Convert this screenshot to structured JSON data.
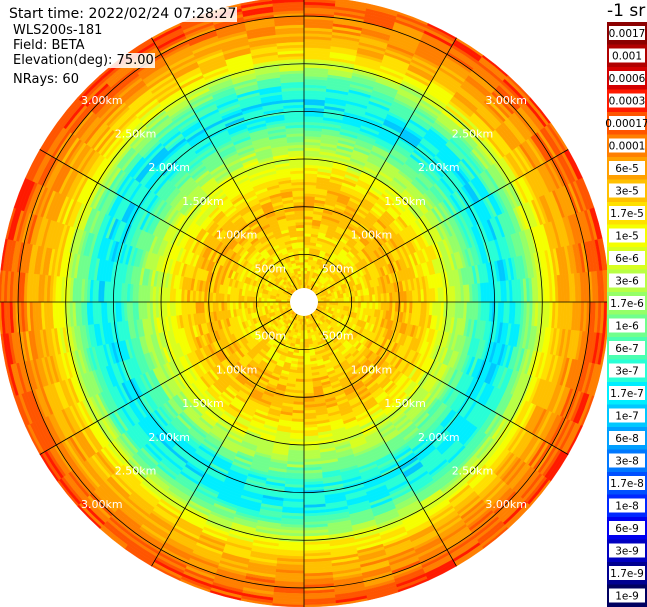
{
  "header": {
    "start_time": "Start time: 2022/02/24 07:28:27",
    "instrument": "WLS200s-181",
    "field": "Field: BETA",
    "elevation": "Elevation(deg): 75.00",
    "nrays": "NRays: 60"
  },
  "colorbar": {
    "title": "-1 sr",
    "ticks": [
      "0.0017",
      "0.001",
      "0.0006",
      "0.0003",
      "0.00017",
      "0.0001",
      "6e-5",
      "3e-5",
      "1.7e-5",
      "1e-5",
      "6e-6",
      "3e-6",
      "1.7e-6",
      "1e-6",
      "6e-7",
      "3e-7",
      "1.7e-7",
      "1e-7",
      "6e-8",
      "3e-8",
      "1.7e-8",
      "1e-8",
      "6e-9",
      "3e-9",
      "1.7e-9",
      "1e-9"
    ],
    "colors": [
      "#8b0000",
      "#b00000",
      "#d40000",
      "#ff1a00",
      "#ff5500",
      "#ff7f00",
      "#ffa000",
      "#ffc000",
      "#ffe000",
      "#f5ff00",
      "#d8ff20",
      "#b8ff45",
      "#95ff68",
      "#70ff8d",
      "#4cffb0",
      "#28ffd6",
      "#00eeff",
      "#00c8ff",
      "#00a0ff",
      "#0078ff",
      "#0050ff",
      "#0028ff",
      "#0000ee",
      "#0000c0",
      "#000090",
      "#000060"
    ]
  },
  "chart_data": {
    "type": "polar-heatmap",
    "title": "",
    "field": "BETA",
    "units": "-1 sr",
    "elevation_deg": 75.0,
    "n_rays": 60,
    "range_rings_km": [
      0.5,
      1.0,
      1.5,
      2.0,
      2.5,
      3.0
    ],
    "ring_labels": [
      "500m",
      "1.00km",
      "1.50km",
      "2.00km",
      "2.50km",
      "3.00km"
    ],
    "max_range_km": 3.2,
    "radial_profile": [
      {
        "range_km": 0.1,
        "level": 18
      },
      {
        "range_km": 0.3,
        "level": 17
      },
      {
        "range_km": 0.5,
        "level": 17
      },
      {
        "range_km": 0.7,
        "level": 17
      },
      {
        "range_km": 0.9,
        "level": 18
      },
      {
        "range_km": 1.1,
        "level": 18
      },
      {
        "range_km": 1.3,
        "level": 17
      },
      {
        "range_km": 1.5,
        "level": 15
      },
      {
        "range_km": 1.7,
        "level": 13
      },
      {
        "range_km": 1.9,
        "level": 10
      },
      {
        "range_km": 2.1,
        "level": 9
      },
      {
        "range_km": 2.25,
        "level": 10
      },
      {
        "range_km": 2.4,
        "level": 13
      },
      {
        "range_km": 2.55,
        "level": 16
      },
      {
        "range_km": 2.7,
        "level": 18
      },
      {
        "range_km": 2.85,
        "level": 19
      },
      {
        "range_km": 3.0,
        "level": 20
      },
      {
        "range_km": 3.15,
        "level": 21
      }
    ]
  }
}
